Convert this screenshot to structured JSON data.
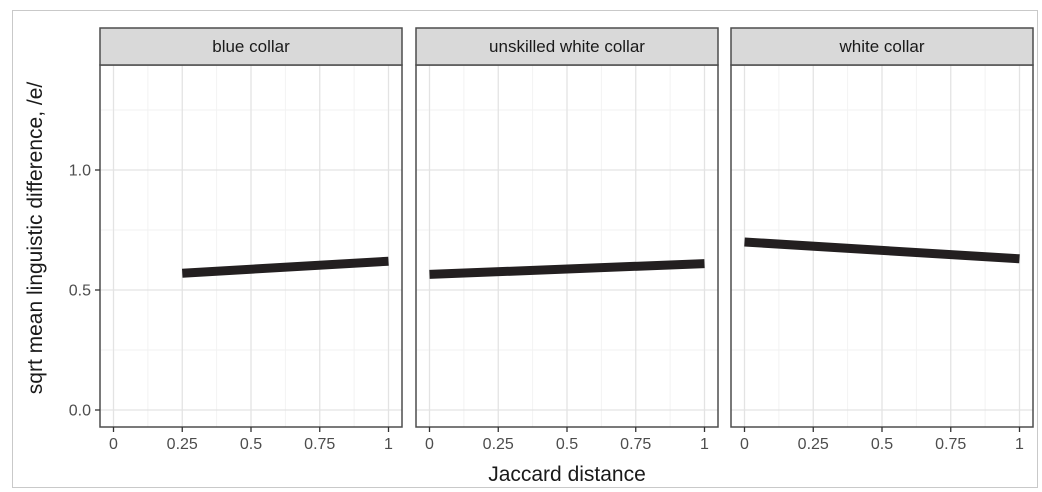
{
  "chart_data": {
    "type": "line",
    "facet_by": "occupation class",
    "xlabel": "Jaccard distance",
    "ylabel": "sqrt mean linguistic difference, /e/",
    "xlim": [
      0,
      1
    ],
    "ylim": [
      0,
      1.35
    ],
    "x_ticks": [
      0,
      0.25,
      0.5,
      0.75,
      1
    ],
    "x_tick_labels": [
      "0",
      "0.25",
      "0.5",
      "0.75",
      "1"
    ],
    "y_ticks": [
      0.0,
      0.5,
      1.0
    ],
    "y_tick_labels": [
      "0.0",
      "0.5",
      "1.0"
    ],
    "grid": true,
    "line_color": "#231f20",
    "strip_color": "#d9d9d9",
    "panels": [
      {
        "strip_label": "blue collar",
        "x": [
          0.25,
          1.0
        ],
        "y": [
          0.57,
          0.62
        ]
      },
      {
        "strip_label": "unskilled white collar",
        "x": [
          0.0,
          1.0
        ],
        "y": [
          0.565,
          0.61
        ]
      },
      {
        "strip_label": "white collar",
        "x": [
          0.0,
          1.0
        ],
        "y": [
          0.7,
          0.63
        ]
      }
    ]
  }
}
